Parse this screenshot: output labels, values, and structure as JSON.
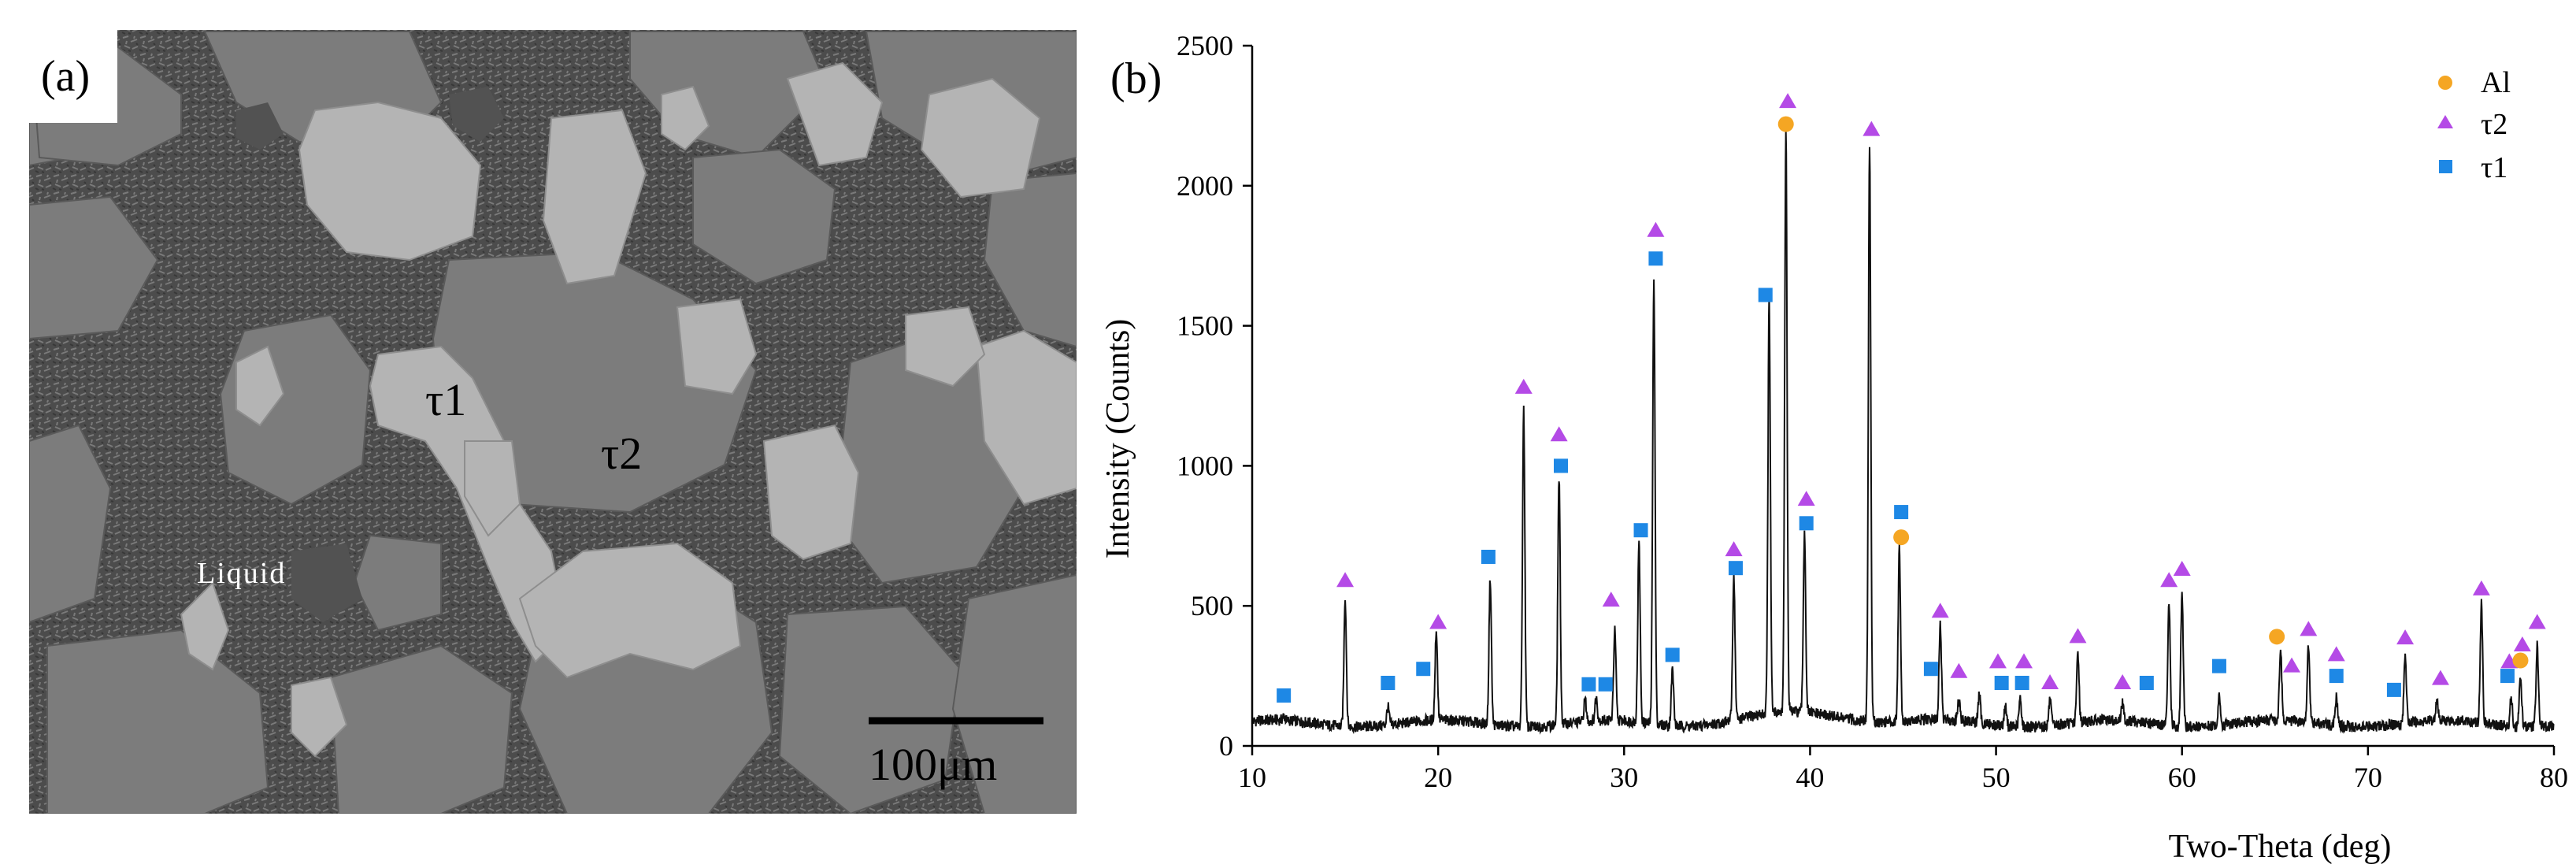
{
  "panel_a": {
    "label": "(a)",
    "phase_labels": {
      "tau1": "τ1",
      "tau2": "τ2",
      "liquid": "Liquid"
    },
    "scale_bar": "100μm",
    "colors": {
      "matrix": "#4a4a4a",
      "tau1": "#b4b4b4",
      "tau2": "#7c7c7c"
    }
  },
  "panel_b": {
    "label": "(b)",
    "legend": [
      {
        "name": "Al",
        "marker": "circle",
        "color": "#f5a623"
      },
      {
        "name": "τ2",
        "marker": "triangle",
        "color": "#b44ae6"
      },
      {
        "name": "τ1",
        "marker": "square",
        "color": "#1e88e5"
      }
    ]
  },
  "chart_data": {
    "type": "line",
    "title": "",
    "xlabel": "Two-Theta (deg)",
    "ylabel": "Intensity (Counts)",
    "xlim": [
      10,
      80
    ],
    "ylim": [
      0,
      2500
    ],
    "xticks": [
      10,
      20,
      30,
      40,
      50,
      60,
      70,
      80
    ],
    "yticks": [
      0,
      500,
      1000,
      1500,
      2000,
      2500
    ],
    "baseline": 80,
    "peaks": [
      [
        11.7,
        95
      ],
      [
        15.0,
        540
      ],
      [
        17.3,
        145
      ],
      [
        19.9,
        400
      ],
      [
        22.8,
        600
      ],
      [
        24.6,
        1210
      ],
      [
        26.5,
        960
      ],
      [
        27.9,
        160
      ],
      [
        28.5,
        160
      ],
      [
        29.5,
        400
      ],
      [
        30.8,
        720
      ],
      [
        31.6,
        1670
      ],
      [
        32.6,
        280
      ],
      [
        35.9,
        590
      ],
      [
        37.8,
        1560
      ],
      [
        38.7,
        2160
      ],
      [
        39.7,
        720
      ],
      [
        43.2,
        2130
      ],
      [
        44.8,
        700
      ],
      [
        47.0,
        420
      ],
      [
        48.0,
        150
      ],
      [
        49.1,
        180
      ],
      [
        50.5,
        150
      ],
      [
        51.3,
        180
      ],
      [
        52.9,
        170
      ],
      [
        54.4,
        330
      ],
      [
        56.8,
        140
      ],
      [
        59.3,
        520
      ],
      [
        60.0,
        560
      ],
      [
        62.0,
        180
      ],
      [
        65.3,
        330
      ],
      [
        66.8,
        350
      ],
      [
        68.3,
        180
      ],
      [
        72.0,
        330
      ],
      [
        73.7,
        150
      ],
      [
        76.1,
        510
      ],
      [
        77.7,
        180
      ],
      [
        78.2,
        260
      ],
      [
        79.1,
        370
      ]
    ],
    "markers": [
      {
        "phase": "τ1",
        "points": [
          [
            11.7,
            180
          ],
          [
            17.3,
            225
          ],
          [
            19.2,
            275
          ],
          [
            22.7,
            675
          ],
          [
            26.6,
            1000
          ],
          [
            28.1,
            220
          ],
          [
            29.0,
            220
          ],
          [
            30.9,
            770
          ],
          [
            31.7,
            1740
          ],
          [
            32.6,
            325
          ],
          [
            36.0,
            635
          ],
          [
            37.6,
            1610
          ],
          [
            39.8,
            795
          ],
          [
            44.9,
            835
          ],
          [
            46.5,
            275
          ],
          [
            50.3,
            225
          ],
          [
            51.4,
            225
          ],
          [
            58.1,
            225
          ],
          [
            62.0,
            285
          ],
          [
            68.3,
            250
          ],
          [
            71.4,
            200
          ],
          [
            77.5,
            250
          ]
        ]
      },
      {
        "phase": "τ2",
        "points": [
          [
            15.0,
            590
          ],
          [
            20.0,
            440
          ],
          [
            24.6,
            1280
          ],
          [
            26.5,
            1110
          ],
          [
            29.3,
            520
          ],
          [
            31.7,
            1840
          ],
          [
            35.9,
            700
          ],
          [
            38.8,
            2300
          ],
          [
            39.8,
            880
          ],
          [
            43.3,
            2200
          ],
          [
            47.0,
            480
          ],
          [
            48.0,
            265
          ],
          [
            50.1,
            300
          ],
          [
            51.5,
            300
          ],
          [
            52.9,
            225
          ],
          [
            54.4,
            390
          ],
          [
            56.8,
            225
          ],
          [
            59.3,
            590
          ],
          [
            60.0,
            630
          ],
          [
            65.9,
            285
          ],
          [
            66.8,
            415
          ],
          [
            68.3,
            325
          ],
          [
            72.0,
            385
          ],
          [
            73.9,
            240
          ],
          [
            76.1,
            560
          ],
          [
            77.6,
            300
          ],
          [
            78.3,
            360
          ],
          [
            79.1,
            440
          ]
        ]
      },
      {
        "phase": "Al",
        "points": [
          [
            38.7,
            2220
          ],
          [
            44.9,
            745
          ],
          [
            65.1,
            390
          ],
          [
            78.2,
            305
          ]
        ]
      }
    ],
    "legend_position": "top-right"
  }
}
